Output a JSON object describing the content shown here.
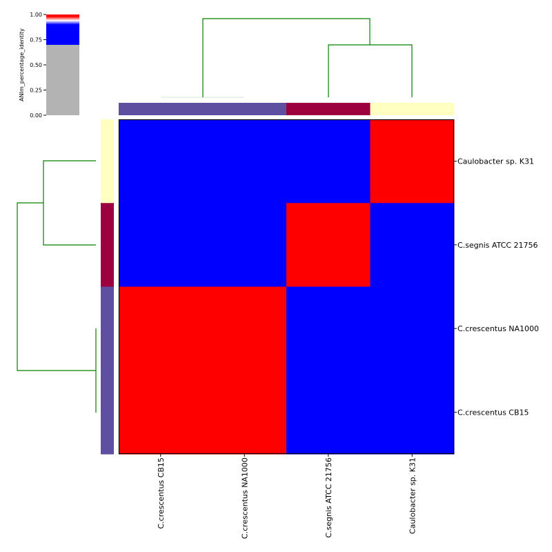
{
  "chart_data": {
    "type": "heatmap",
    "metric_label": "ANIm_percentage_identity",
    "rows": [
      "Caulobacter sp. K31",
      "C.segnis ATCC 21756",
      "C.crescentus NA1000",
      "C.crescentus CB15"
    ],
    "columns": [
      "C.crescentus CB15",
      "C.crescentus NA1000",
      "C.segnis ATCC 21756",
      "Caulobacter sp. K31"
    ],
    "values": [
      [
        0.8,
        0.8,
        0.8,
        1.0
      ],
      [
        0.8,
        0.8,
        1.0,
        0.8
      ],
      [
        1.0,
        1.0,
        0.8,
        0.8
      ],
      [
        1.0,
        1.0,
        0.8,
        0.8
      ]
    ],
    "colorbar": {
      "ticks": [
        "0.00",
        "0.25",
        "0.50",
        "0.75",
        "1.00"
      ],
      "range": [
        0,
        1
      ],
      "threshold": 0.7,
      "colors": {
        "below": "#b3b3b3",
        "mid": "#0000ff",
        "transition": "#ffffff",
        "high": "#ff0000"
      }
    },
    "class_colors": {
      "crescentus": "#5f4fa1",
      "segnis": "#9c003f",
      "k31": "#ffffc2"
    },
    "column_classes": [
      "crescentus",
      "crescentus",
      "segnis",
      "k31"
    ],
    "row_classes": [
      "k31",
      "segnis",
      "crescentus",
      "crescentus"
    ],
    "dendrogram_color": "#008000"
  }
}
